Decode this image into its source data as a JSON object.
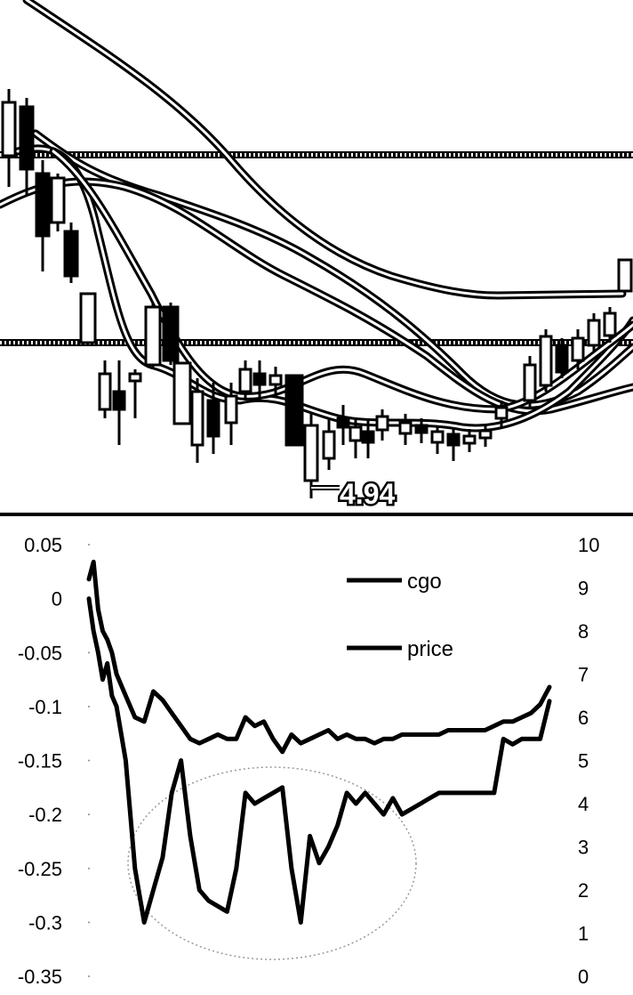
{
  "chart_data": [
    {
      "type": "candlestick",
      "annotations": [
        {
          "text": "4.94"
        }
      ],
      "grid": true,
      "legend": "none"
    },
    {
      "type": "line",
      "legend": "top-center",
      "grid": false,
      "y_left": {
        "ticks": [
          "0.05",
          "0",
          "-0.05",
          "-0.1",
          "-0.15",
          "-0.2",
          "-0.25",
          "-0.3",
          "-0.35"
        ],
        "ylim": [
          -0.35,
          0.05
        ]
      },
      "y_right": {
        "ticks": [
          "10",
          "9",
          "8",
          "7",
          "6",
          "5",
          "4",
          "3",
          "2",
          "1",
          "0"
        ],
        "ylim": [
          0,
          10
        ]
      },
      "series": [
        {
          "name": "cgo",
          "axis": "left",
          "x": [
            0,
            1,
            2,
            3,
            4,
            5,
            6,
            8,
            10,
            12,
            14,
            16,
            18,
            20,
            22,
            24,
            26,
            28,
            30,
            32,
            34,
            36,
            38,
            40,
            42,
            44,
            46,
            48,
            50,
            52,
            54,
            56,
            58,
            60,
            62,
            64,
            66,
            68,
            70,
            72,
            74,
            76,
            78,
            80,
            82,
            84,
            86,
            88,
            90,
            92,
            94,
            96,
            98,
            100
          ],
          "values": [
            0.0,
            -0.03,
            -0.05,
            -0.075,
            -0.06,
            -0.09,
            -0.1,
            -0.15,
            -0.25,
            -0.3,
            -0.27,
            -0.24,
            -0.18,
            -0.15,
            -0.22,
            -0.27,
            -0.28,
            -0.285,
            -0.29,
            -0.25,
            -0.18,
            -0.19,
            -0.185,
            -0.18,
            -0.175,
            -0.25,
            -0.3,
            -0.22,
            -0.245,
            -0.23,
            -0.21,
            -0.18,
            -0.19,
            -0.18,
            -0.19,
            -0.2,
            -0.185,
            -0.2,
            -0.195,
            -0.19,
            -0.185,
            -0.18,
            -0.18,
            -0.18,
            -0.18,
            -0.18,
            -0.18,
            -0.18,
            -0.13,
            -0.135,
            -0.13,
            -0.13,
            -0.13,
            -0.095
          ]
        },
        {
          "name": "price",
          "axis": "right",
          "x": [
            0,
            1,
            2,
            3,
            4,
            5,
            6,
            8,
            10,
            12,
            14,
            16,
            18,
            20,
            22,
            24,
            26,
            28,
            30,
            32,
            34,
            36,
            38,
            40,
            42,
            44,
            46,
            48,
            50,
            52,
            54,
            56,
            58,
            60,
            62,
            64,
            66,
            68,
            70,
            72,
            74,
            76,
            78,
            80,
            82,
            84,
            86,
            88,
            90,
            92,
            94,
            96,
            98,
            100
          ],
          "values": [
            9.2,
            9.6,
            8.5,
            8.0,
            7.8,
            7.5,
            7.0,
            6.5,
            6.0,
            5.9,
            6.6,
            6.4,
            6.1,
            5.8,
            5.5,
            5.4,
            5.5,
            5.6,
            5.5,
            5.5,
            6.0,
            5.8,
            5.9,
            5.5,
            5.2,
            5.6,
            5.4,
            5.5,
            5.6,
            5.7,
            5.5,
            5.6,
            5.5,
            5.5,
            5.4,
            5.5,
            5.5,
            5.6,
            5.6,
            5.6,
            5.6,
            5.6,
            5.7,
            5.7,
            5.7,
            5.7,
            5.7,
            5.8,
            5.9,
            5.9,
            6.0,
            6.1,
            6.3,
            6.7
          ]
        }
      ],
      "highlight": {
        "shape": "ellipse",
        "style": "dotted"
      }
    }
  ]
}
